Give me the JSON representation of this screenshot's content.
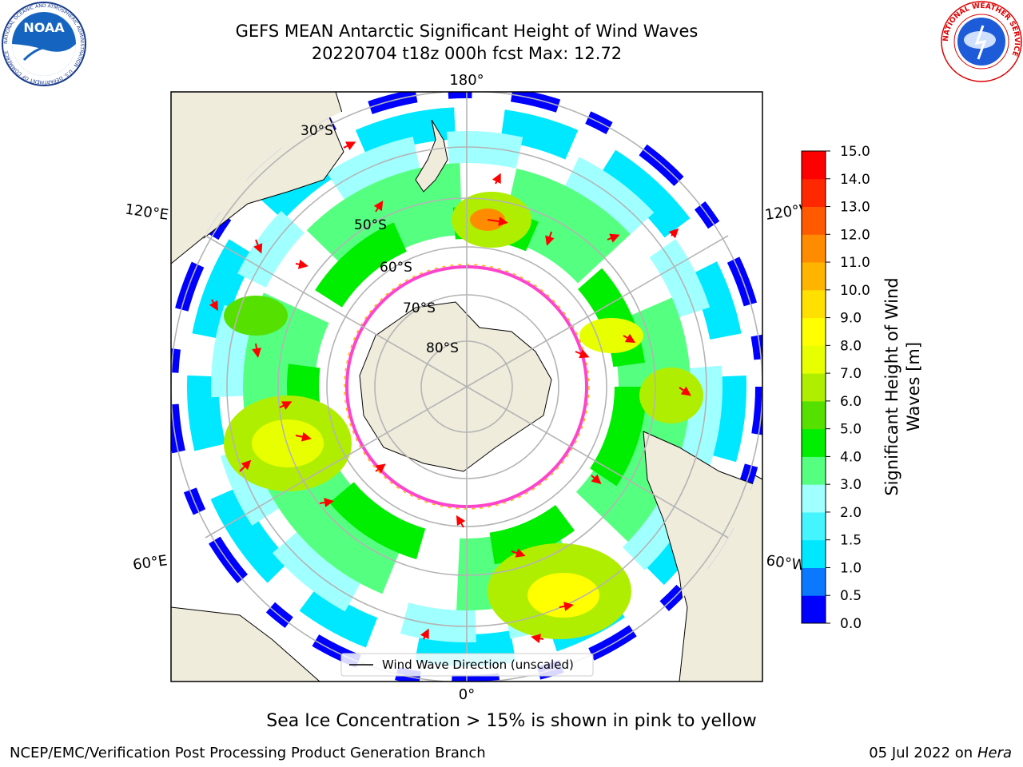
{
  "title": {
    "line1": "GEFS MEAN Antarctic Significant Height of Wind Waves",
    "line2": "20220704 t18z 000h fcst   Max: 12.72"
  },
  "logos": {
    "noaa": {
      "text": "NOAA",
      "ring_text": "NATIONAL OCEANIC AND ATMOSPHERIC ADMINISTRATION · U.S. DEPARTMENT OF COMMERCE"
    },
    "nws": {
      "ring_text": "NATIONAL WEATHER SERVICE"
    }
  },
  "map": {
    "longitude_labels": {
      "top": "180°",
      "bottom": "0°",
      "left_upper": "120°E",
      "left_lower": "60°E",
      "right_upper": "120°W",
      "right_lower": "60°W"
    },
    "latitude_labels": [
      "30°S",
      "50°S",
      "60°S",
      "70°S",
      "80°S"
    ],
    "legend_label": "Wind Wave Direction (unscaled)",
    "colors": {
      "land": "#efecdc",
      "ice_edge": "#ff44cc",
      "arrow": "#ff0000",
      "grid": "#b4b4b4"
    }
  },
  "colorbar": {
    "label_line1": "Significant Height of Wind",
    "label_line2": "Waves [m]",
    "ticks": [
      "0.0",
      "0.5",
      "1.0",
      "1.5",
      "2.0",
      "3.0",
      "4.0",
      "5.0",
      "6.0",
      "7.0",
      "8.0",
      "9.0",
      "10.0",
      "11.0",
      "12.0",
      "13.0",
      "14.0",
      "15.0"
    ],
    "colors": [
      "#0000ff",
      "#0a78ff",
      "#00e8ff",
      "#44f4ff",
      "#a0ffff",
      "#55ff80",
      "#00ee00",
      "#55e000",
      "#b0ee00",
      "#e8ff00",
      "#ffff00",
      "#ffe000",
      "#ffb400",
      "#ff8c00",
      "#ff5a00",
      "#ff2800",
      "#ff0000"
    ]
  },
  "footer": {
    "note": "Sea Ice Concentration > 15% is shown in pink to yellow",
    "credit": "NCEP/EMC/Verification Post Processing Product Generation Branch",
    "date_text": "05 Jul 2022 on ",
    "host": "Hera"
  }
}
